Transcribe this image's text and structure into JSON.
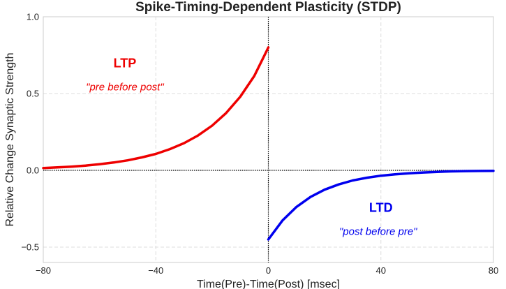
{
  "chart_data": {
    "type": "line",
    "title": "Spike-Timing-Dependent Plasticity (STDP)",
    "xlabel": "Time(Pre)-Time(Post) [msec]",
    "ylabel": "Relative Change Synaptic Strength",
    "xlim": [
      -80,
      80
    ],
    "ylim": [
      -0.6,
      1.0
    ],
    "xticks": [
      -80,
      -40,
      0,
      40,
      80
    ],
    "xtick_labels": [
      "−80",
      "−40",
      "0",
      "40",
      "80"
    ],
    "yticks": [
      -0.5,
      0.0,
      0.5,
      1.0
    ],
    "ytick_labels": [
      "−0.5",
      "0.0",
      "0.5",
      "1.0"
    ],
    "grid": true,
    "series": [
      {
        "color": "#ee0000",
        "x": [
          -80,
          -75,
          -70,
          -65,
          -60,
          -55,
          -50,
          -45,
          -40,
          -35,
          -30,
          -25,
          -20,
          -15,
          -10,
          -5,
          0
        ],
        "y": [
          0.015,
          0.019,
          0.024,
          0.031,
          0.04,
          0.051,
          0.065,
          0.084,
          0.107,
          0.138,
          0.177,
          0.227,
          0.291,
          0.373,
          0.479,
          0.614,
          0.8
        ]
      },
      {
        "color": "#0000ee",
        "x": [
          0,
          5,
          10,
          15,
          20,
          25,
          30,
          35,
          40,
          45,
          50,
          55,
          60,
          65,
          70,
          75,
          80
        ],
        "y": [
          -0.45,
          -0.327,
          -0.238,
          -0.173,
          -0.126,
          -0.092,
          -0.066,
          -0.048,
          -0.035,
          -0.026,
          -0.019,
          -0.014,
          -0.01,
          -0.007,
          -0.005,
          -0.004,
          -0.003
        ]
      }
    ],
    "reference_lines": [
      {
        "orientation": "horizontal",
        "value": 0
      },
      {
        "orientation": "vertical",
        "value": 0
      }
    ],
    "annotations": [
      {
        "text": "LTP",
        "x": -51,
        "y": 0.67,
        "color": "#ee0000",
        "style": "big"
      },
      {
        "text": "\"pre before post\"",
        "x": -51,
        "y": 0.52,
        "color": "#ee0000",
        "style": "small"
      },
      {
        "text": "LTD",
        "x": 40,
        "y": -0.27,
        "color": "#0000ee",
        "style": "big"
      },
      {
        "text": "\"post before pre\"",
        "x": 39,
        "y": -0.42,
        "color": "#0000ee",
        "style": "small"
      }
    ]
  }
}
